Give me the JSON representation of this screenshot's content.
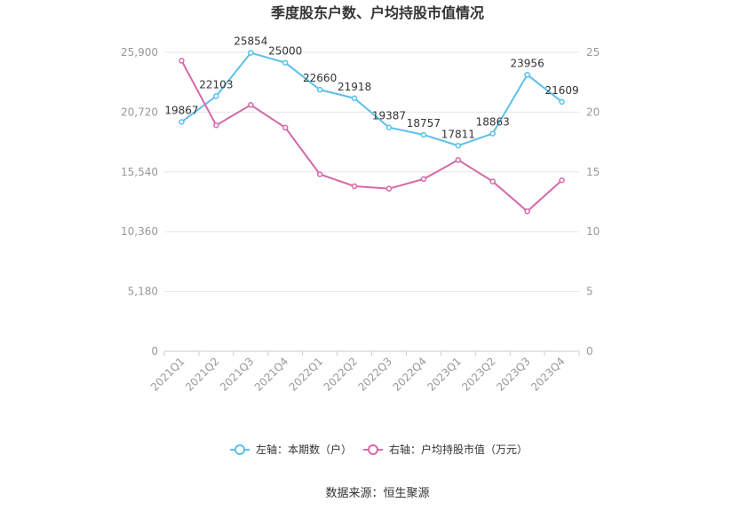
{
  "chart_data": {
    "type": "line",
    "title": "季度股东户数、户均持股市值情况",
    "categories": [
      "2021Q1",
      "2021Q2",
      "2021Q3",
      "2021Q4",
      "2022Q1",
      "2022Q2",
      "2022Q3",
      "2022Q4",
      "2023Q1",
      "2023Q2",
      "2023Q3",
      "2023Q4"
    ],
    "left_axis": {
      "ylim": [
        0,
        25900
      ],
      "ticks": [
        0,
        5180,
        10360,
        15540,
        20720,
        25900
      ],
      "tick_labels": [
        "0",
        "5,180",
        "10,360",
        "15,540",
        "20,720",
        "25,900"
      ]
    },
    "right_axis": {
      "ylim": [
        0,
        25
      ],
      "ticks": [
        0,
        5,
        10,
        15,
        20,
        25
      ],
      "tick_labels": [
        "0",
        "5",
        "10",
        "15",
        "20",
        "25"
      ]
    },
    "series": [
      {
        "name": "左轴：本期数（户）",
        "axis": "left",
        "color": "#5bc0eb",
        "values": [
          19867,
          22103,
          25854,
          25000,
          22660,
          21918,
          19387,
          18757,
          17811,
          18863,
          23956,
          21609
        ],
        "labels": [
          "19867",
          "22103",
          "25854",
          "25000",
          "22660",
          "21918",
          "19387",
          "18757",
          "17811",
          "18863",
          "23956",
          "21609"
        ]
      },
      {
        "name": "右轴：户均持股市值（万元）",
        "axis": "right",
        "color": "#d668a8",
        "values": [
          24.3,
          18.9,
          20.6,
          18.7,
          14.8,
          13.8,
          13.6,
          14.4,
          16.0,
          14.2,
          11.7,
          14.3
        ]
      }
    ],
    "grid": true,
    "legend_position": "bottom"
  },
  "source": "数据来源：恒生聚源"
}
